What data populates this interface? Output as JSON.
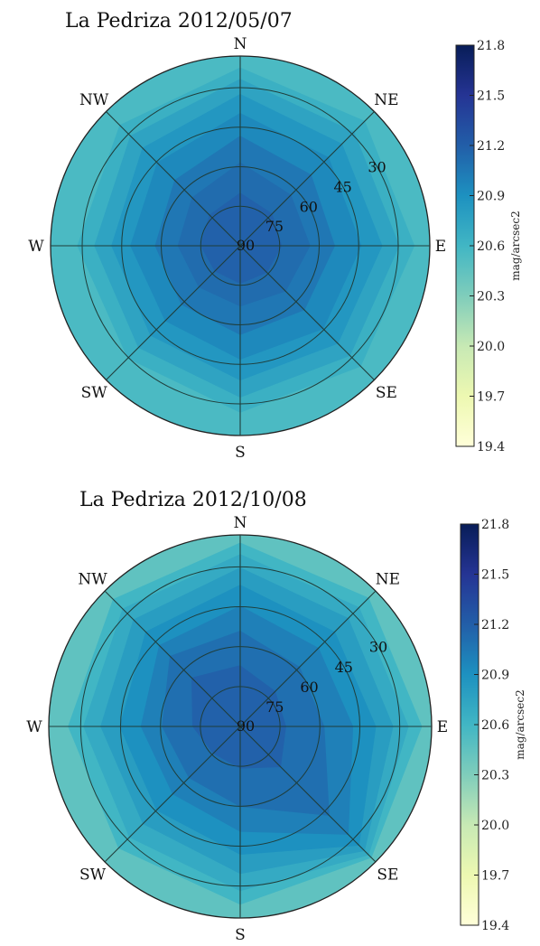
{
  "chart_data": [
    {
      "type": "heatmap",
      "subtype": "polar-contour",
      "title": "La Pedriza 2012/05/07",
      "directions": [
        "N",
        "NE",
        "E",
        "SE",
        "S",
        "SW",
        "W",
        "NW"
      ],
      "altitude_rings": [
        "30",
        "45",
        "60",
        "75",
        "90"
      ],
      "colorbar": {
        "label": "mag/arcsec2",
        "min": 19.4,
        "max": 21.8,
        "ticks": [
          "21.8",
          "21.5",
          "21.2",
          "20.9",
          "20.6",
          "20.3",
          "20.0",
          "19.7",
          "19.4"
        ]
      },
      "grid": true,
      "levels": [
        {
          "value": 20.55,
          "radii": [
            0.99,
            0.99,
            0.99,
            0.99,
            0.99,
            0.99,
            0.99,
            0.99
          ]
        },
        {
          "value": 20.65,
          "radii": [
            0.94,
            0.93,
            0.92,
            0.9,
            0.88,
            0.84,
            0.86,
            0.9
          ]
        },
        {
          "value": 20.75,
          "radii": [
            0.88,
            0.85,
            0.84,
            0.82,
            0.8,
            0.76,
            0.77,
            0.82
          ]
        },
        {
          "value": 20.85,
          "radii": [
            0.8,
            0.76,
            0.75,
            0.73,
            0.71,
            0.67,
            0.68,
            0.73
          ]
        },
        {
          "value": 20.95,
          "radii": [
            0.7,
            0.66,
            0.64,
            0.62,
            0.6,
            0.56,
            0.58,
            0.62
          ]
        },
        {
          "value": 21.05,
          "radii": [
            0.58,
            0.53,
            0.5,
            0.48,
            0.47,
            0.44,
            0.45,
            0.49
          ]
        },
        {
          "value": 21.12,
          "radii": [
            0.44,
            0.38,
            0.37,
            0.34,
            0.32,
            0.31,
            0.33,
            0.36
          ]
        },
        {
          "value": 21.18,
          "radii": [
            0.28,
            0.24,
            0.22,
            0.2,
            0.2,
            0.19,
            0.21,
            0.23
          ]
        }
      ]
    },
    {
      "type": "heatmap",
      "subtype": "polar-contour",
      "title": "La Pedriza 2012/10/08",
      "directions": [
        "N",
        "NE",
        "E",
        "SE",
        "S",
        "SW",
        "W",
        "NW"
      ],
      "altitude_rings": [
        "30",
        "45",
        "60",
        "75",
        "90"
      ],
      "colorbar": {
        "label": "mag/arcsec2",
        "min": 19.4,
        "max": 21.8,
        "ticks": [
          "21.8",
          "21.5",
          "21.2",
          "20.9",
          "20.6",
          "20.3",
          "20.0",
          "19.7",
          "19.4"
        ]
      },
      "grid": true,
      "levels": [
        {
          "value": 20.45,
          "radii": [
            0.99,
            0.99,
            0.99,
            0.99,
            0.99,
            0.99,
            0.99,
            0.99
          ]
        },
        {
          "value": 20.6,
          "radii": [
            0.96,
            0.95,
            0.95,
            0.97,
            0.93,
            0.9,
            0.9,
            0.94
          ]
        },
        {
          "value": 20.7,
          "radii": [
            0.9,
            0.88,
            0.88,
            0.95,
            0.86,
            0.82,
            0.82,
            0.87
          ]
        },
        {
          "value": 20.8,
          "radii": [
            0.83,
            0.8,
            0.8,
            0.92,
            0.77,
            0.72,
            0.73,
            0.79
          ]
        },
        {
          "value": 20.9,
          "radii": [
            0.74,
            0.7,
            0.71,
            0.88,
            0.67,
            0.62,
            0.63,
            0.7
          ]
        },
        {
          "value": 21.0,
          "radii": [
            0.63,
            0.58,
            0.59,
            0.8,
            0.55,
            0.5,
            0.52,
            0.6
          ]
        },
        {
          "value": 21.1,
          "radii": [
            0.5,
            0.44,
            0.44,
            0.66,
            0.42,
            0.38,
            0.41,
            0.52
          ]
        },
        {
          "value": 21.18,
          "radii": [
            0.32,
            0.26,
            0.24,
            0.3,
            0.22,
            0.2,
            0.25,
            0.36
          ]
        }
      ]
    }
  ]
}
